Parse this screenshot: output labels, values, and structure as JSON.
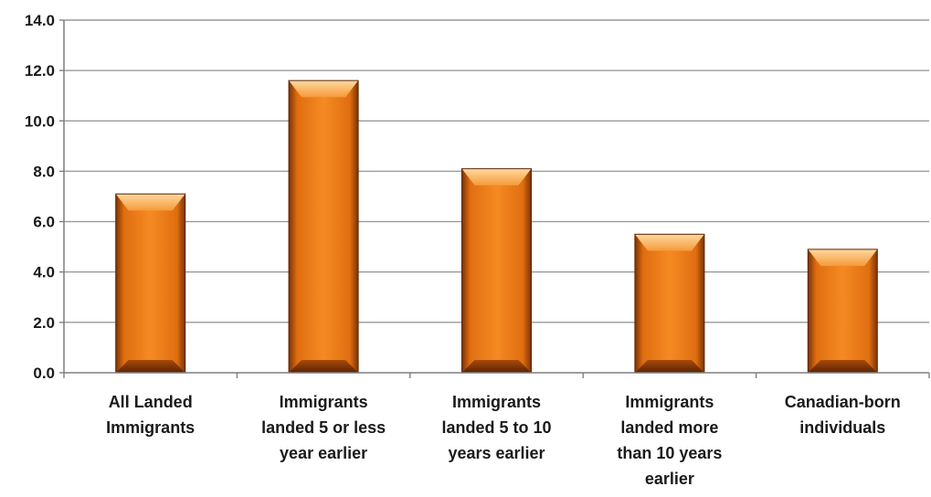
{
  "chart_data": {
    "type": "bar",
    "categories": [
      [
        "All Landed",
        "Immigrants"
      ],
      [
        "Immigrants",
        "landed 5 or less",
        "year earlier"
      ],
      [
        "Immigrants",
        "landed 5 to 10",
        "years earlier"
      ],
      [
        "Immigrants",
        "landed more",
        "than 10 years",
        "earlier"
      ],
      [
        "Canadian-born",
        "individuals"
      ]
    ],
    "series": [
      {
        "values": [
          7.1,
          11.6,
          8.1,
          5.5,
          4.9
        ]
      }
    ],
    "title": "",
    "xlabel": "",
    "ylabel": "",
    "ylim": [
      0,
      14
    ],
    "yticks": [
      "0.0",
      "2.0",
      "4.0",
      "6.0",
      "8.0",
      "10.0",
      "12.0",
      "14.0"
    ],
    "grid": true,
    "legend": "none",
    "colors": {
      "bar_light": "#ffb35a",
      "bar_mid": "#f07d17",
      "bar_dark": "#6b2c05",
      "grid": "#9a9a9a",
      "axis": "#7f7f7f"
    }
  }
}
